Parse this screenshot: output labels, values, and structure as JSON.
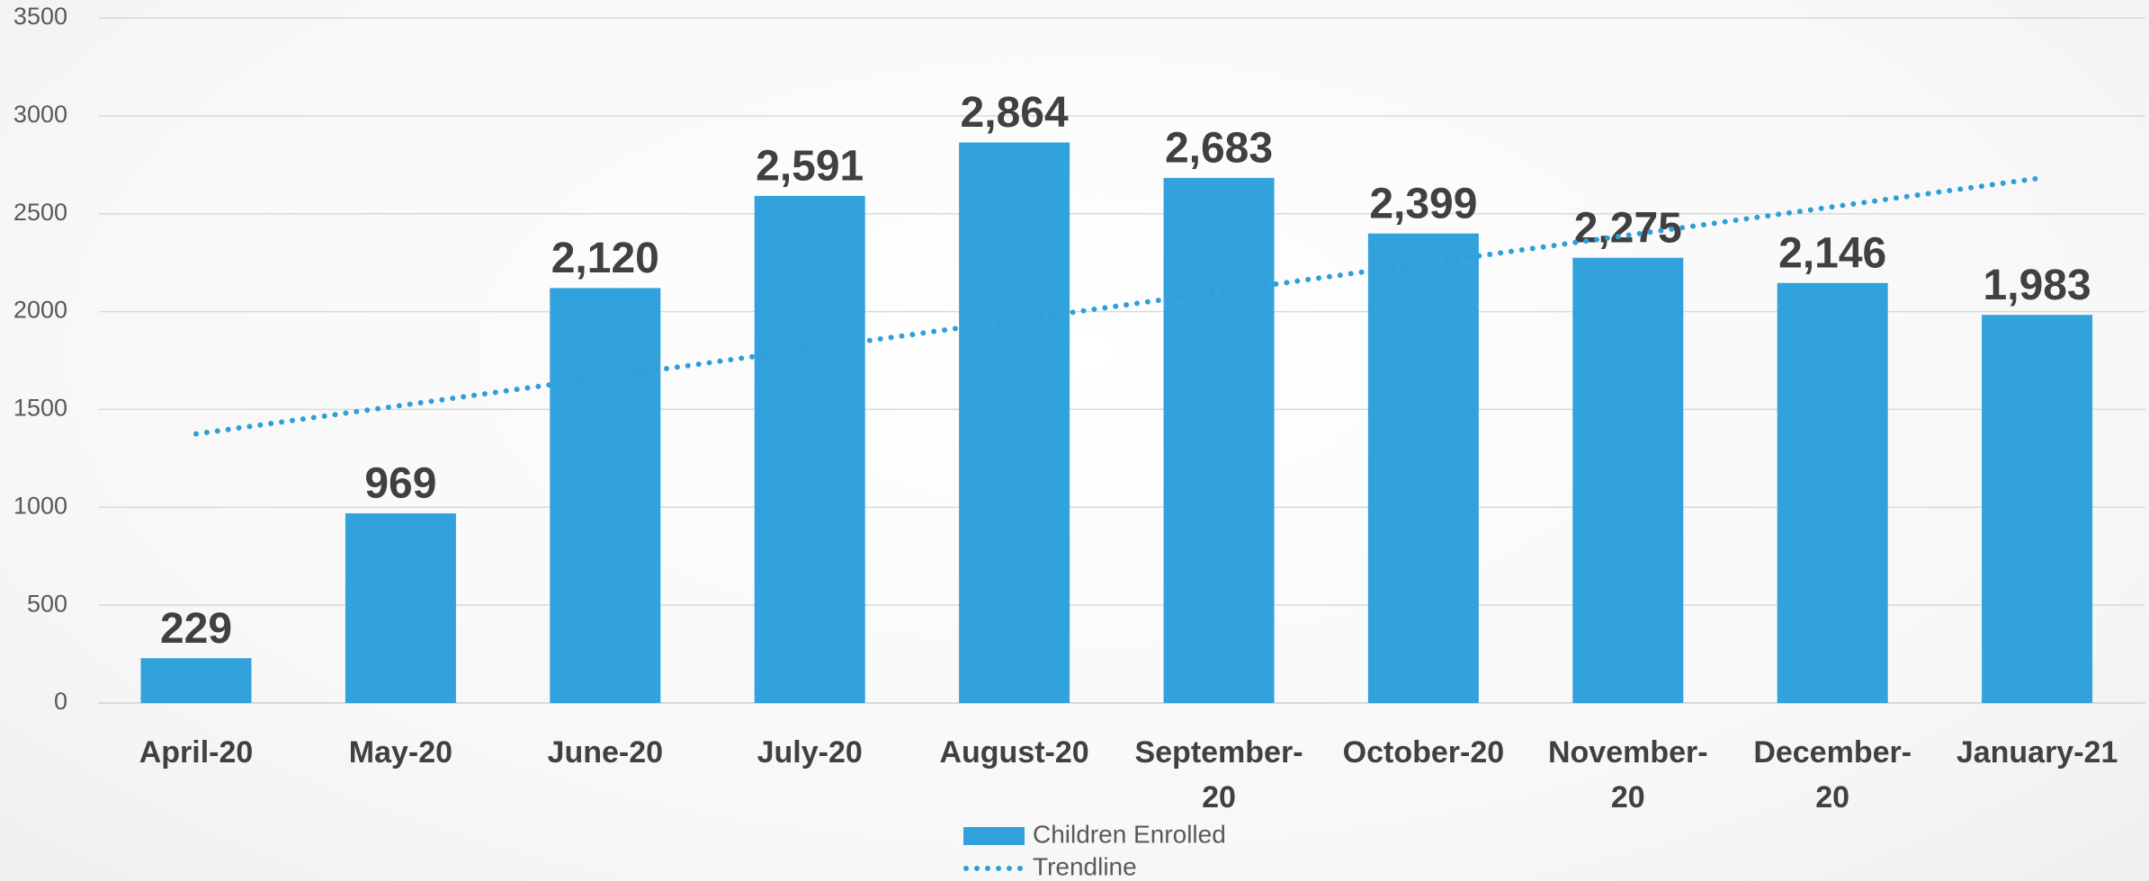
{
  "chart_data": {
    "type": "bar",
    "categories": [
      "April-20",
      "May-20",
      "June-20",
      "July-20",
      "August-20",
      "September-20",
      "October-20",
      "November-20",
      "December-20",
      "January-21"
    ],
    "series": [
      {
        "name": "Children Enrolled",
        "color": "#31a2dc",
        "values": [
          229,
          969,
          2120,
          2591,
          2864,
          2683,
          2399,
          2275,
          2146,
          1983
        ],
        "value_labels": [
          "229",
          "969",
          "2,120",
          "2,591",
          "2,864",
          "2,683",
          "2,399",
          "2,275",
          "2,146",
          "1,983"
        ]
      },
      {
        "name": "Trendline",
        "color": "#2e9fd8",
        "type": "line",
        "style": "dotted",
        "values": [
          1375,
          1520,
          1665,
          1810,
          1955,
          2100,
          2245,
          2390,
          2535,
          2680
        ]
      }
    ],
    "ylim": [
      0,
      3500
    ],
    "yticks": [
      0,
      500,
      1000,
      1500,
      2000,
      2500,
      3000,
      3500
    ],
    "grid": true,
    "legend": "bottom"
  }
}
